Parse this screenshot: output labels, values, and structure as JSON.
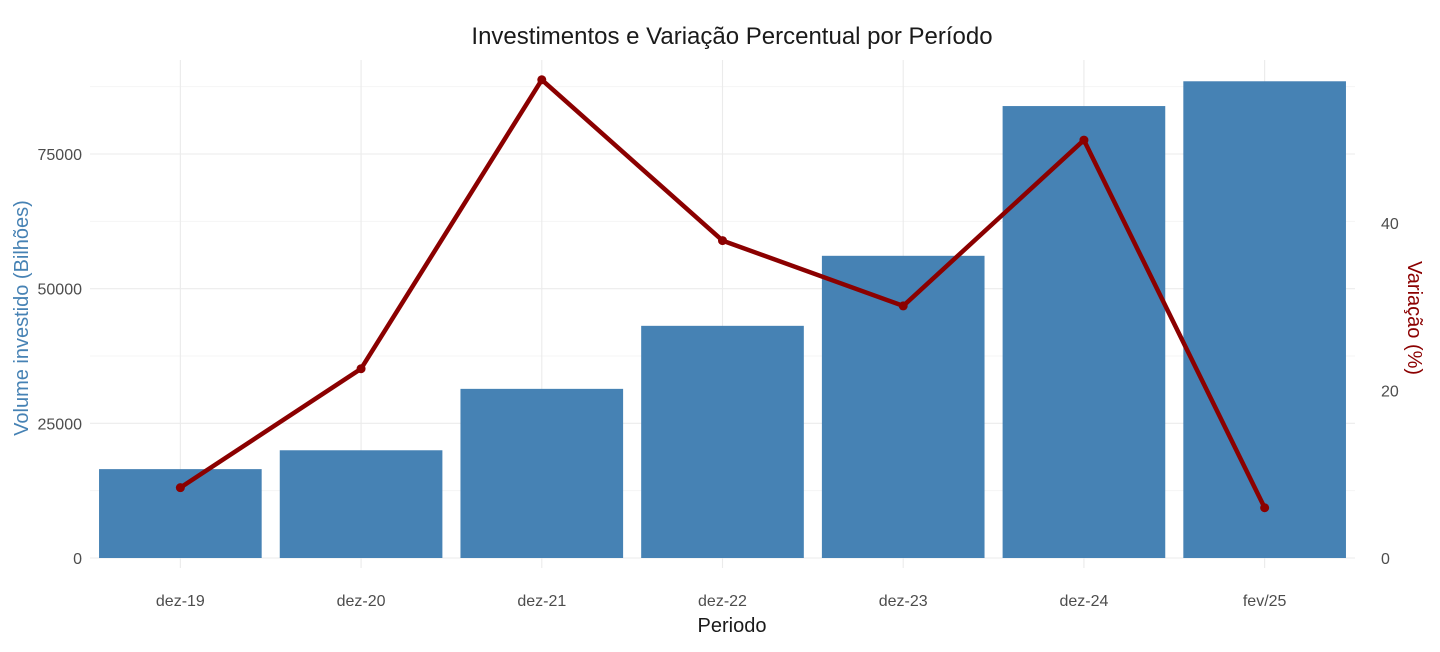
{
  "chart_data": {
    "type": "bar+line",
    "title": "Investimentos e Variação Percentual por Período",
    "xlabel": "Periodo",
    "ylabel": "Volume investido (Bilhões)",
    "ylabel_right": "Variação (%)",
    "categories": [
      "dez-19",
      "dez-20",
      "dez-21",
      "dez-22",
      "dez-23",
      "dez-24",
      "fev/25"
    ],
    "series": [
      {
        "name": "Volume investido (Bilhões)",
        "type": "bar",
        "axis": "left",
        "color": "#4682b4",
        "values": [
          16500,
          20000,
          31400,
          43100,
          56100,
          83900,
          88500
        ]
      },
      {
        "name": "Variação (%)",
        "type": "line",
        "axis": "right",
        "color": "#8b0000",
        "values": [
          8.4,
          22.6,
          57.1,
          37.9,
          30.1,
          49.9,
          6.0
        ]
      }
    ],
    "ylim": [
      0,
      88500
    ],
    "ylim_right": [
      0,
      57.1
    ],
    "yticks": [
      0,
      25000,
      50000,
      75000
    ],
    "yticks_right": [
      0,
      20,
      40
    ],
    "grid": true,
    "legend": "none"
  }
}
